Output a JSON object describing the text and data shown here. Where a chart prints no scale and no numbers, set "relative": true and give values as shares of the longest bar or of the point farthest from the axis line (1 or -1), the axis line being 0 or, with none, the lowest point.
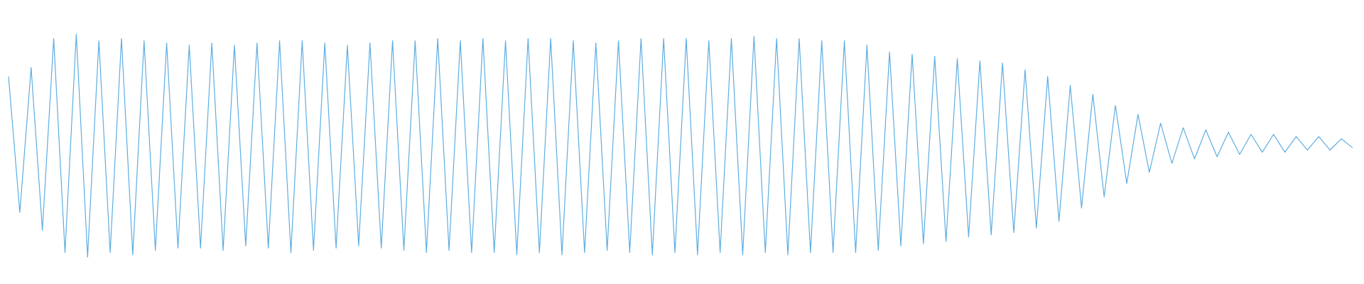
{
  "chart_data": {
    "type": "line",
    "relative": true,
    "marker": "none",
    "line_style": "solid",
    "categories": [
      null,
      null,
      null,
      null,
      null,
      null,
      null,
      null,
      null,
      null,
      null,
      null,
      null,
      null,
      null,
      null,
      null,
      null,
      null,
      null,
      null,
      null,
      null,
      null,
      null,
      null,
      null,
      null,
      null,
      null,
      null,
      null,
      null,
      null,
      null,
      null,
      null,
      null,
      null,
      null,
      null,
      null,
      null,
      null,
      null,
      null,
      null,
      null,
      null,
      null,
      null,
      null,
      null,
      null,
      null,
      null,
      null,
      null,
      null,
      null,
      null,
      null,
      null,
      null,
      null,
      null,
      null,
      null,
      null,
      null,
      null,
      null,
      null,
      null,
      null,
      null,
      null,
      null,
      null,
      null,
      null,
      null,
      null,
      null,
      null,
      null,
      null,
      null,
      null,
      null,
      null,
      null,
      null,
      null,
      null,
      null,
      null,
      null,
      null,
      null,
      null,
      null,
      null,
      null,
      null,
      null,
      null,
      null,
      null,
      null,
      null,
      null,
      null,
      null,
      null,
      null,
      null,
      null,
      null,
      null
    ],
    "series": [
      {
        "color": "#5dade2",
        "values": [
          0.81,
          0.2,
          0.85,
          0.12,
          0.98,
          0.02,
          1,
          0,
          0.97,
          0.02,
          0.98,
          0.01,
          0.97,
          0.03,
          0.96,
          0.04,
          0.95,
          0.04,
          0.96,
          0.03,
          0.95,
          0.05,
          0.96,
          0.04,
          0.97,
          0.02,
          0.97,
          0.03,
          0.96,
          0.04,
          0.95,
          0.05,
          0.96,
          0.04,
          0.97,
          0.03,
          0.97,
          0.02,
          0.98,
          0.03,
          0.97,
          0.02,
          0.98,
          0.02,
          0.97,
          0.01,
          0.98,
          0.02,
          0.98,
          0.01,
          0.97,
          0.02,
          0.96,
          0.03,
          0.97,
          0.02,
          0.98,
          0.01,
          0.98,
          0.02,
          0.98,
          0.01,
          0.97,
          0.02,
          0.98,
          0.01,
          0.99,
          0.02,
          0.98,
          0.01,
          0.98,
          0.02,
          0.97,
          0.02,
          0.97,
          0.02,
          0.95,
          0.03,
          0.92,
          0.05,
          0.91,
          0.06,
          0.9,
          0.07,
          0.89,
          0.09,
          0.88,
          0.1,
          0.87,
          0.11,
          0.84,
          0.13,
          0.81,
          0.16,
          0.77,
          0.22,
          0.73,
          0.27,
          0.68,
          0.33,
          0.64,
          0.38,
          0.6,
          0.42,
          0.58,
          0.44,
          0.57,
          0.45,
          0.56,
          0.46,
          0.55,
          0.47,
          0.55,
          0.47,
          0.54,
          0.48,
          0.54,
          0.48,
          0.53,
          0.49
        ]
      }
    ]
  }
}
